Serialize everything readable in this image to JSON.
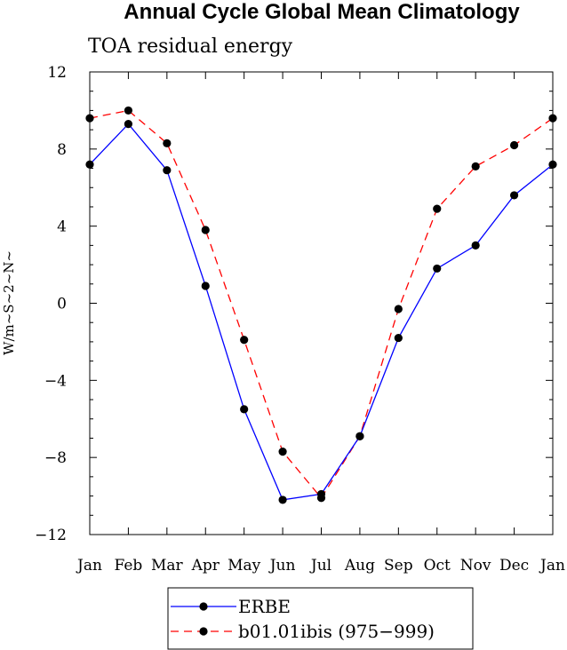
{
  "chart_data": {
    "type": "line",
    "title": "Annual Cycle Global Mean Climatology",
    "subtitle": "TOA residual energy",
    "xlabel": "",
    "ylabel": "W/m~S~2~N~",
    "categories": [
      "Jan",
      "Feb",
      "Mar",
      "Apr",
      "May",
      "Jun",
      "Jul",
      "Aug",
      "Sep",
      "Oct",
      "Nov",
      "Dec",
      "Jan"
    ],
    "ylim": [
      -12,
      12
    ],
    "yticks": [
      -12,
      -8,
      -4,
      0,
      4,
      8,
      12
    ],
    "ytick_labels": [
      "−12",
      "−8",
      "−4",
      "0",
      "4",
      "8",
      "12"
    ],
    "grid": false,
    "legend_position": "bottom",
    "series": [
      {
        "name": "ERBE",
        "color": "#0000ff",
        "dash": "solid",
        "values": [
          7.2,
          9.3,
          6.9,
          0.9,
          -5.5,
          -10.2,
          -9.9,
          -6.9,
          -1.8,
          1.8,
          3.0,
          5.6,
          7.2
        ]
      },
      {
        "name": "b01.01ibis (975−999)",
        "color": "#ff0000",
        "dash": "dashed",
        "values": [
          9.6,
          10.0,
          8.3,
          3.8,
          -1.9,
          -7.7,
          -10.1,
          -6.9,
          -0.3,
          4.9,
          7.1,
          8.2,
          9.6
        ]
      }
    ]
  }
}
